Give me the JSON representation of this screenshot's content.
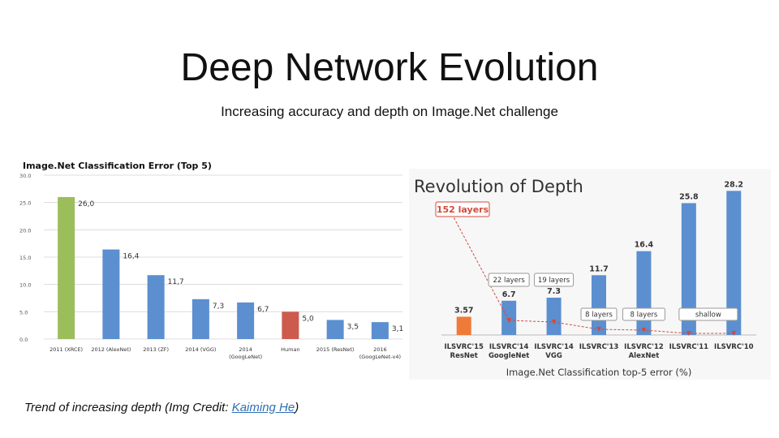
{
  "title": "Deep Network Evolution",
  "subtitle": "Increasing accuracy and depth on Image.Net challenge",
  "caption": {
    "prefix": "Trend of increasing depth (Img Credit: ",
    "link": "Kaiming He",
    "suffix": ")"
  },
  "colors": {
    "blue": "#5b8fd0",
    "green": "#9bbe5b",
    "red": "#cc5b4e",
    "orange": "#f07a3a",
    "accent_red": "#d24c3c"
  },
  "chart_data": [
    {
      "type": "bar",
      "title": "Image.Net Classification Error (Top 5)",
      "ylim": [
        0,
        30
      ],
      "yticks": [
        "0.0",
        "5.0",
        "10.0",
        "15.0",
        "20.0",
        "25.0",
        "30.0"
      ],
      "categories": [
        [
          "2011 (XRCE)"
        ],
        [
          "2012 (AlexNet)"
        ],
        [
          "2013 (ZF)"
        ],
        [
          "2014 (VGG)"
        ],
        [
          "2014",
          "(GoogLeNet)"
        ],
        [
          "Human"
        ],
        [
          "2015 (ResNet)"
        ],
        [
          "2016",
          "(GoogLeNet-v4)"
        ]
      ],
      "values": [
        26.0,
        16.4,
        11.7,
        7.3,
        6.7,
        5.0,
        3.5,
        3.1
      ],
      "labels": [
        "26,0",
        "16,4",
        "11,7",
        "7,3",
        "6,7",
        "5,0",
        "3,5",
        "3,1"
      ],
      "bar_colors": [
        "#9bbe5b",
        "#5b8fd0",
        "#5b8fd0",
        "#5b8fd0",
        "#5b8fd0",
        "#cc5b4e",
        "#5b8fd0",
        "#5b8fd0"
      ]
    },
    {
      "type": "bar",
      "title": "Revolution of Depth",
      "xlabel": "Image.Net Classification top-5 error (%)",
      "ylim": [
        0,
        30
      ],
      "categories": [
        [
          "ILSVRC'15",
          "ResNet"
        ],
        [
          "ILSVRC'14",
          "GoogleNet"
        ],
        [
          "ILSVRC'14",
          "VGG"
        ],
        [
          "ILSVRC'13"
        ],
        [
          "ILSVRC'12",
          "AlexNet"
        ],
        [
          "ILSVRC'11"
        ],
        [
          "ILSVRC'10"
        ]
      ],
      "values": [
        3.57,
        6.7,
        7.3,
        11.7,
        16.4,
        25.8,
        28.2
      ],
      "labels": [
        "3.57",
        "6.7",
        "7.3",
        "11.7",
        "16.4",
        "25.8",
        "28.2"
      ],
      "bar_colors": [
        "#f07a3a",
        "#5b8fd0",
        "#5b8fd0",
        "#5b8fd0",
        "#5b8fd0",
        "#5b8fd0",
        "#5b8fd0"
      ],
      "depth_labels": [
        "152 layers",
        "22 layers",
        "19 layers",
        "8 layers",
        "8 layers",
        "shallow"
      ]
    }
  ]
}
